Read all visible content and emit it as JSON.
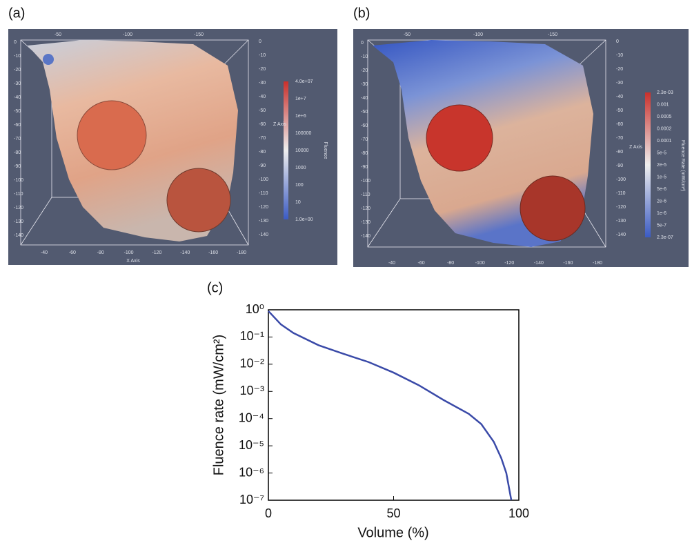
{
  "panels": [
    {
      "label": "(a)",
      "top_ticks": [
        "-50",
        "-100",
        "-150"
      ],
      "left_ticks": [
        "0",
        "-10",
        "-20",
        "-30",
        "-40",
        "-50",
        "-60",
        "-70",
        "-80",
        "-90",
        "-100",
        "-110",
        "-120",
        "-130",
        "-140"
      ],
      "right_ticks": [
        "0",
        "-10",
        "-20",
        "-30",
        "-40",
        "-50",
        "-60",
        "-70",
        "-80",
        "-90",
        "-100",
        "-110",
        "-120",
        "-130",
        "-140"
      ],
      "right_axis_title": "Z Axis",
      "bottom_ticks": [
        "-40",
        "-60",
        "-80",
        "-100",
        "-120",
        "-140",
        "-160",
        "-180"
      ],
      "bottom_axis_title": "X Axis",
      "colorbar_title": "Fluence",
      "colorbar_ticks": [
        "4.0e+07",
        "1e+7",
        "1e+6",
        "100000",
        "10000",
        "1000",
        "100",
        "10",
        "1.0e+00"
      ]
    },
    {
      "label": "(b)",
      "top_ticks": [
        "-50",
        "-100",
        "-150"
      ],
      "left_ticks": [
        "0",
        "-10",
        "-20",
        "-30",
        "-40",
        "-50",
        "-60",
        "-70",
        "-80",
        "-90",
        "-100",
        "-110",
        "-120",
        "-130",
        "-140"
      ],
      "right_ticks": [
        "0",
        "-10",
        "-20",
        "-30",
        "-40",
        "-50",
        "-60",
        "-70",
        "-80",
        "-90",
        "-100",
        "-110",
        "-120",
        "-130",
        "-140"
      ],
      "right_axis_title": "Z Axis",
      "bottom_ticks": [
        "-40",
        "-60",
        "-80",
        "-100",
        "-120",
        "-140",
        "-160",
        "-180"
      ],
      "colorbar_title": "Fluence Rate (mW/cm²)",
      "colorbar_ticks": [
        "2.3e-03",
        "0.001",
        "0.0005",
        "0.0002",
        "0.0001",
        "5e-5",
        "2e-5",
        "1e-5",
        "5e-6",
        "2e-6",
        "1e-6",
        "5e-7",
        "2.3e-07"
      ]
    }
  ],
  "chart_data": {
    "type": "line",
    "panel_label": "(c)",
    "x_label": "Volume (%)",
    "y_label": "Fluence rate (mW/cm²)",
    "x": [
      0,
      5,
      10,
      20,
      30,
      40,
      50,
      60,
      70,
      80,
      85,
      90,
      93,
      95,
      97
    ],
    "series": [
      {
        "color": "#3a4aa8",
        "values": [
          0.9,
          0.29,
          0.14,
          0.05,
          0.024,
          0.012,
          0.0049,
          0.0017,
          0.00048,
          0.00015,
          6.3e-05,
          1.4e-05,
          3.5e-06,
          1e-06,
          1e-07
        ]
      }
    ],
    "xlim": [
      0,
      100
    ],
    "xticks": [
      0,
      50,
      100
    ],
    "ylog": true,
    "ylim": [
      1e-07,
      1
    ],
    "yticks": [
      {
        "value": 1,
        "label": "10⁰"
      },
      {
        "value": 0.1,
        "label": "10⁻¹"
      },
      {
        "value": 0.01,
        "label": "10⁻²"
      },
      {
        "value": 0.001,
        "label": "10⁻³"
      },
      {
        "value": 0.0001,
        "label": "10⁻⁴"
      },
      {
        "value": 1e-05,
        "label": "10⁻⁵"
      },
      {
        "value": 1e-06,
        "label": "10⁻⁶"
      },
      {
        "value": 1e-07,
        "label": "10⁻⁷"
      }
    ]
  }
}
